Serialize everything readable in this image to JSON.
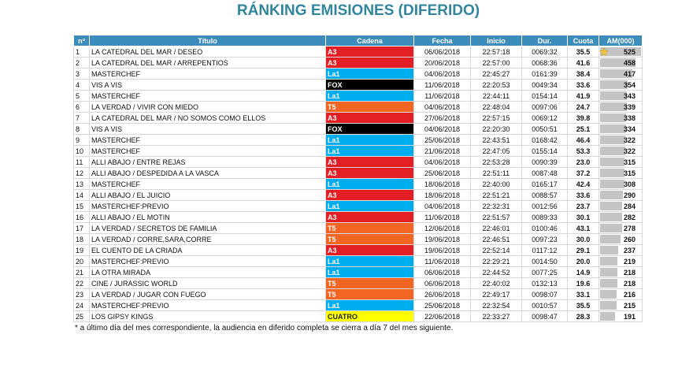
{
  "header": {
    "title": "RÁNKING EMISIONES (DIFERIDO)"
  },
  "table": {
    "columns": [
      "nº",
      "Título",
      "Cadena",
      "Fecha",
      "Inicio",
      "Dur.",
      "Cuota",
      "AM(000)"
    ],
    "rows": [
      [
        1,
        "LA CATEDRAL DEL MAR / DESEO",
        "A3",
        "06/06/2018",
        "22:57:18",
        "0069:32",
        "35.5",
        525
      ],
      [
        2,
        "LA CATEDRAL DEL MAR / ARREPENTIOS",
        "A3",
        "20/06/2018",
        "22:57:00",
        "0068:36",
        "41.6",
        458
      ],
      [
        3,
        "MASTERCHEF",
        "La1",
        "04/06/2018",
        "22:45:27",
        "0161:39",
        "38.4",
        417
      ],
      [
        4,
        "VIS A VIS",
        "FOX",
        "11/06/2018",
        "22:20:53",
        "0049:34",
        "33.6",
        354
      ],
      [
        5,
        "MASTERCHEF",
        "La1",
        "11/06/2018",
        "22:44:11",
        "0154:14",
        "41.9",
        343
      ],
      [
        6,
        "LA VERDAD / VIVIR CON MIEDO",
        "T5",
        "04/06/2018",
        "22:48:04",
        "0097:06",
        "24.7",
        339
      ],
      [
        7,
        "LA CATEDRAL DEL MAR / NO SOMOS COMO ELLOS",
        "A3",
        "27/06/2018",
        "22:57:15",
        "0069:12",
        "39.8",
        338
      ],
      [
        8,
        "VIS A VIS",
        "FOX",
        "04/06/2018",
        "22:20:30",
        "0050:51",
        "25.1",
        334
      ],
      [
        9,
        "MASTERCHEF",
        "La1",
        "25/06/2018",
        "22:43:51",
        "0168:42",
        "46.4",
        322
      ],
      [
        10,
        "MASTERCHEF",
        "La1",
        "21/06/2018",
        "22:47:05",
        "0155:14",
        "53.3",
        322
      ],
      [
        11,
        "ALLI ABAJO / ENTRE REJAS",
        "A3",
        "04/06/2018",
        "22:53:28",
        "0090:39",
        "23.0",
        315
      ],
      [
        12,
        "ALLI ABAJO / DESPEDIDA A LA VASCA",
        "A3",
        "25/06/2018",
        "22:51:11",
        "0087:48",
        "37.2",
        315
      ],
      [
        13,
        "MASTERCHEF",
        "La1",
        "18/06/2018",
        "22:40:00",
        "0165:17",
        "42.4",
        308
      ],
      [
        14,
        "ALLI ABAJO / EL JUICIO",
        "A3",
        "18/06/2018",
        "22:51:21",
        "0088:57",
        "33.6",
        290
      ],
      [
        15,
        "MASTERCHEF:PREVIO",
        "La1",
        "04/06/2018",
        "22:32:31",
        "0012:56",
        "23.7",
        284
      ],
      [
        16,
        "ALLI ABAJO / EL MOTIN",
        "A3",
        "11/06/2018",
        "22:51:57",
        "0089:33",
        "30.1",
        282
      ],
      [
        17,
        "LA VERDAD / SECRETOS DE FAMILIA",
        "T5",
        "12/06/2018",
        "22:46:01",
        "0100:46",
        "43.1",
        278
      ],
      [
        18,
        "LA VERDAD / CORRE,SARA,CORRE",
        "T5",
        "19/06/2018",
        "22:46:51",
        "0097:23",
        "30.0",
        260
      ],
      [
        19,
        "EL CUENTO DE LA CRIADA",
        "A3",
        "19/06/2018",
        "22:52:14",
        "0117:12",
        "29.1",
        237
      ],
      [
        20,
        "MASTERCHEF:PREVIO",
        "La1",
        "11/06/2018",
        "22:29:21",
        "0014:50",
        "20.0",
        219
      ],
      [
        21,
        "LA OTRA MIRADA",
        "La1",
        "06/06/2018",
        "22:44:52",
        "0077:25",
        "14.9",
        218
      ],
      [
        22,
        "CINE / JURASSIC WORLD",
        "T5",
        "06/06/2018",
        "22:40:02",
        "0132:13",
        "19.6",
        218
      ],
      [
        23,
        "LA VERDAD / JUGAR CON FUEGO",
        "T5",
        "26/06/2018",
        "22:49:17",
        "0098:07",
        "33.1",
        216
      ],
      [
        24,
        "MASTERCHEF:PREVIO",
        "La1",
        "25/06/2018",
        "22:32:54",
        "0010:57",
        "35.5",
        215
      ],
      [
        25,
        "LOS GIPSY KINGS",
        "CUATRO",
        "22/06/2018",
        "22:33:27",
        "0098:47",
        "28.3",
        191
      ]
    ],
    "channel_colors": {
      "A3": [
        "#e31e24",
        "#ffffff"
      ],
      "La1": [
        "#00aeef",
        "#ffffff"
      ],
      "FOX": [
        "#000000",
        "#ffffff"
      ],
      "T5": [
        "#f26522",
        "#ffffff"
      ],
      "CUATRO": [
        "#ffff00",
        "#222222"
      ]
    },
    "bar_color": "#c4c4c4"
  },
  "footnote": "* a último día del mes correspondiente, la audiencia en diferido completa se cierra a día 7 del mes siguiente."
}
